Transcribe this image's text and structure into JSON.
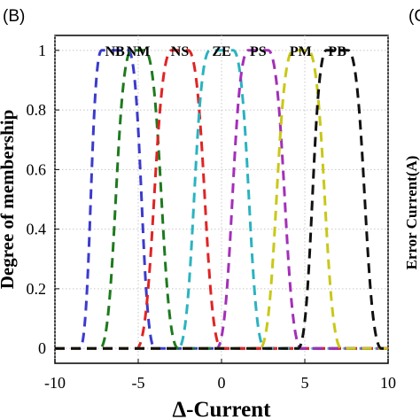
{
  "panel_label": "(B)",
  "edge_label": "(C",
  "cut_axis_label": "Error Current(A)",
  "chart_data": {
    "type": "line",
    "xlabel": "Δ-Current",
    "ylabel": "Degree of membership",
    "xlim": [
      -10,
      10
    ],
    "ylim": [
      -0.05,
      1.05
    ],
    "xticks": [
      -10,
      -5,
      0,
      5,
      10
    ],
    "yticks": [
      0,
      0.2,
      0.4,
      0.6,
      0.8,
      1
    ],
    "grid": true,
    "series": [
      {
        "name": "NB",
        "color": "#3b3bcc",
        "points": [
          [
            -10,
            0
          ],
          [
            -8.5,
            0
          ],
          [
            -7.2,
            1
          ],
          [
            -5.6,
            1
          ],
          [
            -4,
            0
          ],
          [
            10,
            0
          ]
        ]
      },
      {
        "name": "NM",
        "color": "#1e7a1e",
        "points": [
          [
            -10,
            0
          ],
          [
            -7.3,
            0
          ],
          [
            -5.4,
            1
          ],
          [
            -4.6,
            1
          ],
          [
            -2.6,
            0
          ],
          [
            10,
            0
          ]
        ]
      },
      {
        "name": "NS",
        "color": "#e02424",
        "points": [
          [
            -10,
            0
          ],
          [
            -5.1,
            0
          ],
          [
            -3,
            1
          ],
          [
            -2,
            1
          ],
          [
            0,
            0
          ],
          [
            10,
            0
          ]
        ]
      },
      {
        "name": "ZE",
        "color": "#2ab3c0",
        "points": [
          [
            -10,
            0
          ],
          [
            -2.6,
            0
          ],
          [
            -0.7,
            1
          ],
          [
            0.7,
            1
          ],
          [
            2.6,
            0
          ],
          [
            10,
            0
          ]
        ]
      },
      {
        "name": "PS",
        "color": "#a32fb8",
        "points": [
          [
            -10,
            0
          ],
          [
            -0.3,
            0
          ],
          [
            1.6,
            1
          ],
          [
            2.8,
            1
          ],
          [
            4.8,
            0
          ],
          [
            10,
            0
          ]
        ]
      },
      {
        "name": "PM",
        "color": "#c8c818",
        "points": [
          [
            -10,
            0
          ],
          [
            2.3,
            0
          ],
          [
            4.3,
            1
          ],
          [
            5.2,
            1
          ],
          [
            7.2,
            0
          ],
          [
            10,
            0
          ]
        ]
      },
      {
        "name": "PB",
        "color": "#111111",
        "points": [
          [
            -10,
            0
          ],
          [
            4.6,
            0
          ],
          [
            6.3,
            1
          ],
          [
            7.6,
            1
          ],
          [
            9.6,
            0
          ],
          [
            10,
            0
          ]
        ]
      }
    ]
  }
}
